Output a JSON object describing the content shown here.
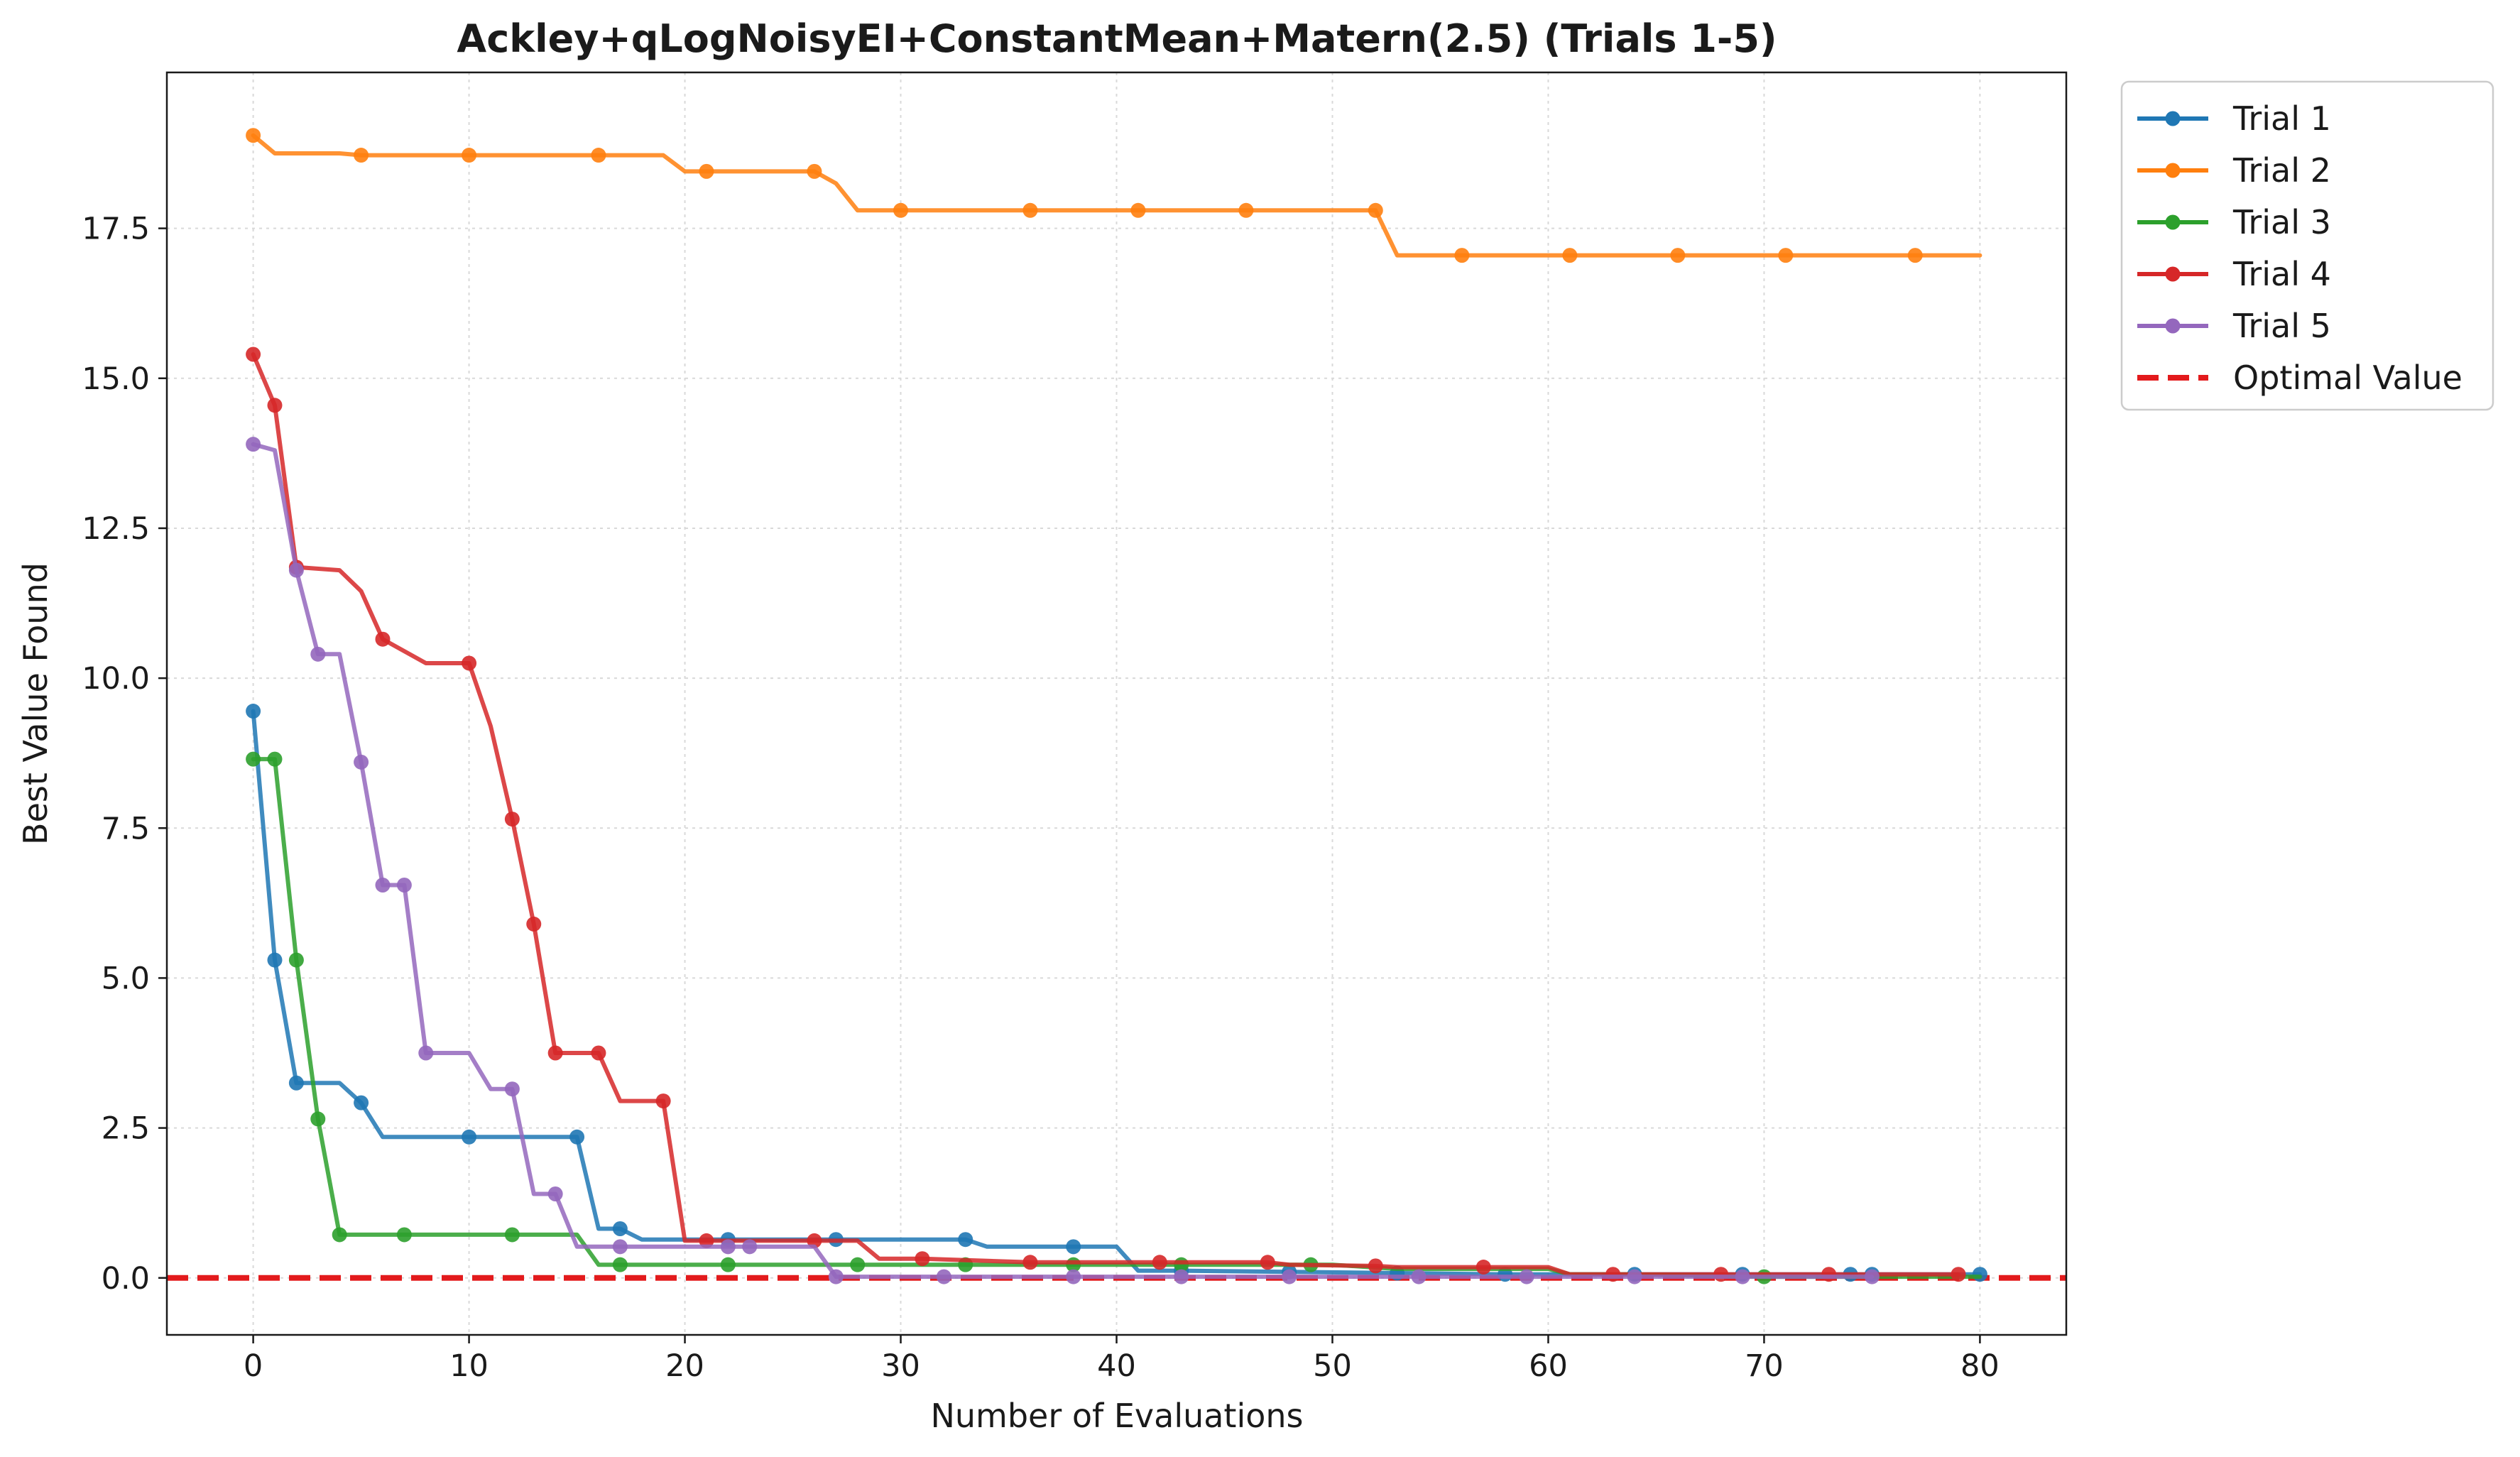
{
  "chart_data": {
    "type": "line",
    "title": "Ackley+qLogNoisyEI+ConstantMean+Matern(2.5) (Trials 1-5)",
    "xlabel": "Number of Evaluations",
    "ylabel": "Best Value Found",
    "xlim": [
      -4,
      84
    ],
    "ylim": [
      -0.95,
      20.1
    ],
    "xticks": [
      0,
      10,
      20,
      30,
      40,
      50,
      60,
      70,
      80
    ],
    "xtick_labels": [
      "0",
      "10",
      "20",
      "30",
      "40",
      "50",
      "60",
      "70",
      "80"
    ],
    "yticks": [
      0,
      2.5,
      5,
      7.5,
      10,
      12.5,
      15,
      17.5
    ],
    "ytick_labels": [
      "0.0",
      "2.5",
      "5.0",
      "7.5",
      "10.0",
      "12.5",
      "15.0",
      "17.5"
    ],
    "grid": true,
    "legend_position": "outside-top-right",
    "optimal_value": 0,
    "optimal_label": "Optimal Value",
    "optimal_color": "#e31a1c",
    "series": [
      {
        "name": "Trial 1",
        "color": "#1f77b4",
        "x": [
          0,
          1,
          2,
          3,
          4,
          5,
          6,
          10,
          15,
          16,
          17,
          18,
          22,
          27,
          33,
          34,
          38,
          40,
          41,
          42,
          43,
          48,
          53,
          58,
          64,
          69,
          74,
          75,
          80
        ],
        "y": [
          9.45,
          5.3,
          3.25,
          3.25,
          3.25,
          2.92,
          2.35,
          2.35,
          2.35,
          0.82,
          0.82,
          0.64,
          0.64,
          0.64,
          0.64,
          0.52,
          0.52,
          0.52,
          0.12,
          0.12,
          0.12,
          0.1,
          0.08,
          0.06,
          0.06,
          0.06,
          0.06,
          0.06,
          0.06
        ],
        "markers": [
          0,
          1,
          2,
          5,
          10,
          15,
          17,
          22,
          27,
          33,
          38,
          43,
          48,
          53,
          58,
          64,
          69,
          74,
          75,
          80
        ]
      },
      {
        "name": "Trial 2",
        "color": "#ff7f0e",
        "x": [
          0,
          1,
          4,
          5,
          10,
          16,
          19,
          20,
          21,
          26,
          27,
          28,
          30,
          36,
          41,
          46,
          52,
          53,
          56,
          61,
          66,
          71,
          77,
          80
        ],
        "y": [
          19.05,
          18.75,
          18.75,
          18.72,
          18.72,
          18.72,
          18.72,
          18.45,
          18.45,
          18.45,
          18.25,
          17.8,
          17.8,
          17.8,
          17.8,
          17.8,
          17.8,
          17.05,
          17.05,
          17.05,
          17.05,
          17.05,
          17.05,
          17.05
        ],
        "markers": [
          0,
          5,
          10,
          16,
          21,
          26,
          30,
          36,
          41,
          46,
          52,
          56,
          61,
          66,
          71,
          77
        ]
      },
      {
        "name": "Trial 3",
        "color": "#2ca02c",
        "x": [
          0,
          1,
          2,
          3,
          4,
          7,
          12,
          15,
          16,
          17,
          22,
          28,
          33,
          38,
          43,
          49,
          50,
          53,
          60,
          61,
          64,
          70,
          80
        ],
        "y": [
          8.65,
          8.65,
          5.3,
          2.65,
          0.72,
          0.72,
          0.72,
          0.72,
          0.22,
          0.22,
          0.22,
          0.22,
          0.22,
          0.22,
          0.22,
          0.22,
          0.22,
          0.15,
          0.15,
          0.06,
          0.06,
          0.02,
          0.02
        ],
        "markers": [
          0,
          1,
          2,
          3,
          4,
          7,
          12,
          17,
          22,
          28,
          33,
          38,
          43,
          49,
          70
        ]
      },
      {
        "name": "Trial 4",
        "color": "#d62728",
        "x": [
          0,
          1,
          2,
          4,
          5,
          6,
          7,
          8,
          10,
          11,
          12,
          13,
          14,
          16,
          17,
          19,
          20,
          21,
          26,
          28,
          29,
          31,
          36,
          42,
          47,
          48,
          52,
          53,
          57,
          60,
          61,
          63,
          68,
          73,
          79
        ],
        "y": [
          15.4,
          14.55,
          11.85,
          11.8,
          11.45,
          10.65,
          10.45,
          10.25,
          10.25,
          9.2,
          7.65,
          5.9,
          3.75,
          3.75,
          2.95,
          2.95,
          0.62,
          0.62,
          0.62,
          0.62,
          0.32,
          0.32,
          0.26,
          0.26,
          0.26,
          0.22,
          0.2,
          0.18,
          0.18,
          0.18,
          0.06,
          0.06,
          0.06,
          0.06,
          0.06
        ],
        "markers": [
          0,
          1,
          2,
          6,
          10,
          12,
          13,
          14,
          16,
          19,
          21,
          26,
          31,
          36,
          42,
          47,
          52,
          57,
          63,
          68,
          73,
          79
        ]
      },
      {
        "name": "Trial 5",
        "color": "#9467bd",
        "x": [
          0,
          1,
          2,
          3,
          4,
          5,
          6,
          7,
          8,
          10,
          11,
          12,
          13,
          14,
          15,
          17,
          22,
          23,
          26,
          27,
          32,
          38,
          43,
          48,
          54,
          59,
          64,
          69,
          75
        ],
        "y": [
          13.9,
          13.8,
          11.8,
          10.4,
          10.4,
          8.6,
          6.55,
          6.55,
          3.75,
          3.75,
          3.15,
          3.15,
          1.4,
          1.4,
          0.52,
          0.52,
          0.52,
          0.52,
          0.52,
          0.02,
          0.02,
          0.02,
          0.02,
          0.02,
          0.02,
          0.02,
          0.02,
          0.02,
          0.02
        ],
        "markers": [
          0,
          2,
          3,
          5,
          6,
          7,
          8,
          12,
          14,
          17,
          22,
          23,
          27,
          32,
          38,
          43,
          48,
          54,
          59,
          64,
          69,
          75
        ]
      }
    ]
  }
}
